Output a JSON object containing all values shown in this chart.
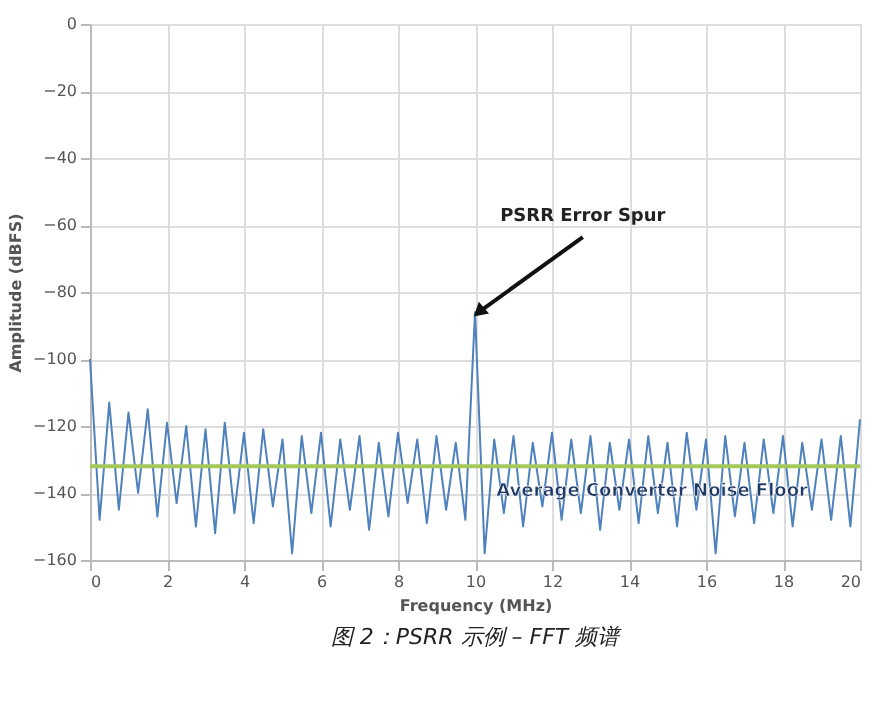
{
  "chart_data": {
    "type": "line",
    "xlabel": "Frequency (MHz)",
    "ylabel": "Amplitude (dBFS)",
    "xlim": [
      0,
      20
    ],
    "xticks": [
      0,
      2,
      4,
      6,
      8,
      10,
      12,
      14,
      16,
      18,
      20
    ],
    "ylim": [
      -160,
      0
    ],
    "yticks": [
      -160,
      -140,
      -120,
      -100,
      -80,
      -60,
      -40,
      -20,
      0
    ],
    "grid": true,
    "marker": "none",
    "line_style": "solid",
    "series": [
      {
        "color": "#4f81bd",
        "x": [
          0,
          0.25,
          0.5,
          0.75,
          1,
          1.25,
          1.5,
          1.75,
          2,
          2.25,
          2.5,
          2.75,
          3,
          3.25,
          3.5,
          3.75,
          4,
          4.25,
          4.5,
          4.75,
          5,
          5.25,
          5.5,
          5.75,
          6,
          6.25,
          6.5,
          6.75,
          7,
          7.25,
          7.5,
          7.75,
          8,
          8.25,
          8.5,
          8.75,
          9,
          9.25,
          9.5,
          9.75,
          10,
          10.25,
          10.5,
          10.75,
          11,
          11.25,
          11.5,
          11.75,
          12,
          12.25,
          12.5,
          12.75,
          13,
          13.25,
          13.5,
          13.75,
          14,
          14.25,
          14.5,
          14.75,
          15,
          15.25,
          15.5,
          15.75,
          16,
          16.25,
          16.5,
          16.75,
          17,
          17.25,
          17.5,
          17.75,
          18,
          18.25,
          18.5,
          18.75,
          19,
          19.25,
          19.5,
          19.75,
          20
        ],
        "values": [
          -100,
          -148,
          -113,
          -145,
          -116,
          -140,
          -115,
          -147,
          -119,
          -143,
          -120,
          -150,
          -121,
          -152,
          -119,
          -146,
          -122,
          -149,
          -121,
          -144,
          -124,
          -158,
          -123,
          -146,
          -122,
          -150,
          -124,
          -145,
          -123,
          -151,
          -125,
          -147,
          -122,
          -143,
          -124,
          -149,
          -123,
          -145,
          -125,
          -148,
          -86,
          -158,
          -124,
          -146,
          -123,
          -150,
          -125,
          -144,
          -122,
          -148,
          -124,
          -146,
          -123,
          -151,
          -125,
          -145,
          -124,
          -149,
          -123,
          -146,
          -125,
          -150,
          -122,
          -145,
          -124,
          -158,
          -123,
          -147,
          -125,
          -149,
          -124,
          -146,
          -123,
          -150,
          -125,
          -145,
          -124,
          -148,
          -123,
          -150,
          -118
        ]
      }
    ],
    "ref_lines": [
      {
        "axis": "y",
        "value": -132,
        "label": "Average Converter Noise Floor",
        "color": "#a5c85a"
      }
    ],
    "annotations": [
      {
        "text": "PSRR Error Spur",
        "x": 10,
        "y": -86
      },
      "图 2：PSRR 示例 – FFT 频谱"
    ]
  }
}
